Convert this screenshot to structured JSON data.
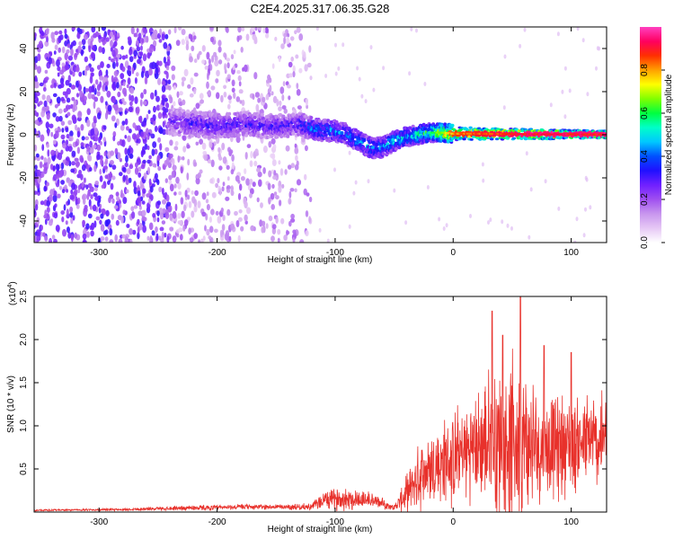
{
  "title": "C2E4.2025.317.06.35.G28",
  "chart_data": [
    {
      "type": "heatmap",
      "xlabel": "Height of straight line (km)",
      "ylabel": "Frequency (Hz)",
      "xlim": [
        -355,
        130
      ],
      "ylim": [
        -50,
        50
      ],
      "xticks": [
        -300,
        -200,
        -100,
        0,
        100
      ],
      "xtick_labels": [
        "-300",
        "-200",
        "-100",
        "0",
        "100"
      ],
      "yticks": [
        -40,
        -20,
        0,
        20,
        40
      ],
      "ytick_labels": [
        "-40",
        "-20",
        "0",
        "20",
        "40"
      ],
      "colorbar": {
        "label": "Normalized spectral amplitude",
        "range": [
          0,
          1
        ],
        "ticks": [
          0.0,
          0.2,
          0.4,
          0.6,
          0.8
        ],
        "tick_labels": [
          "0.0",
          "0.2",
          "0.4",
          "0.6",
          "0.8"
        ],
        "colors": [
          "#ffffff",
          "#e6c8f5",
          "#c896ee",
          "#a050f0",
          "#7020ff",
          "#2010ff",
          "#0050ff",
          "#00c8ff",
          "#00ffc8",
          "#00ff40",
          "#80ff00",
          "#ffff00",
          "#ffa000",
          "#ff3000",
          "#ff0060",
          "#ff40c0"
        ]
      },
      "ridge": {
        "x": [
          -240,
          -220,
          -200,
          -180,
          -160,
          -140,
          -130,
          -120,
          -110,
          -100,
          -90,
          -80,
          -70,
          -60,
          -50,
          -40,
          -30,
          -20,
          -10,
          0,
          20,
          40,
          60,
          80,
          100,
          130
        ],
        "freq_hz": [
          6,
          5,
          4,
          5,
          4,
          4,
          5,
          3,
          2,
          2,
          0,
          -3,
          -6,
          -6,
          -3,
          -1,
          0,
          1,
          1,
          0.5,
          0.5,
          0.3,
          0.3,
          0.2,
          0.2,
          0.1
        ],
        "peak_amplitude": [
          0.25,
          0.3,
          0.3,
          0.3,
          0.3,
          0.3,
          0.32,
          0.4,
          0.42,
          0.42,
          0.42,
          0.45,
          0.45,
          0.45,
          0.5,
          0.5,
          0.55,
          0.6,
          0.72,
          0.85,
          0.9,
          0.92,
          0.95,
          0.95,
          0.95,
          0.95
        ]
      }
    },
    {
      "type": "line",
      "xlabel": "Height of straight line (km)",
      "ylabel": "SNR (10 * v/v)",
      "scale_label": "(x10",
      "scale_exp": "4",
      "scale_close": ")",
      "xlim": [
        -355,
        130
      ],
      "ylim": [
        0,
        2.5
      ],
      "xticks": [
        -300,
        -200,
        -100,
        0,
        100
      ],
      "xtick_labels": [
        "-300",
        "-200",
        "-100",
        "0",
        "100"
      ],
      "yticks": [
        0.5,
        1.0,
        1.5,
        2.0,
        2.5
      ],
      "ytick_labels": [
        "0.5",
        "1.0",
        "1.5",
        "2.0",
        "2.5"
      ],
      "series": [
        {
          "name": "SNR",
          "color": "#e8312b",
          "x": [
            -355,
            -320,
            -280,
            -250,
            -220,
            -200,
            -180,
            -150,
            -120,
            -110,
            -100,
            -90,
            -80,
            -70,
            -60,
            -50,
            -40,
            -30,
            -20,
            -10,
            0,
            10,
            20,
            30,
            40,
            50,
            60,
            70,
            80,
            90,
            100,
            110,
            120,
            130
          ],
          "baseline": [
            0.02,
            0.025,
            0.03,
            0.04,
            0.05,
            0.05,
            0.06,
            0.06,
            0.06,
            0.14,
            0.15,
            0.16,
            0.15,
            0.14,
            0.1,
            0.05,
            0.2,
            0.4,
            0.5,
            0.55,
            0.6,
            0.7,
            0.75,
            0.8,
            0.82,
            0.85,
            0.8,
            0.75,
            0.75,
            0.78,
            0.8,
            0.8,
            0.82,
            0.85
          ],
          "amplitude": [
            0.01,
            0.01,
            0.015,
            0.02,
            0.03,
            0.03,
            0.03,
            0.03,
            0.04,
            0.1,
            0.12,
            0.14,
            0.12,
            0.1,
            0.06,
            0.03,
            0.2,
            0.35,
            0.45,
            0.5,
            0.55,
            0.55,
            0.6,
            0.8,
            0.9,
            0.9,
            0.85,
            0.7,
            0.6,
            0.6,
            0.55,
            0.55,
            0.55,
            0.5
          ],
          "peaks": [
            {
              "x": 33,
              "y": 2.33
            },
            {
              "x": 57,
              "y": 2.5
            },
            {
              "x": 42,
              "y": 2.05
            },
            {
              "x": 77,
              "y": 1.93
            },
            {
              "x": 100,
              "y": 1.85
            }
          ]
        }
      ]
    }
  ]
}
